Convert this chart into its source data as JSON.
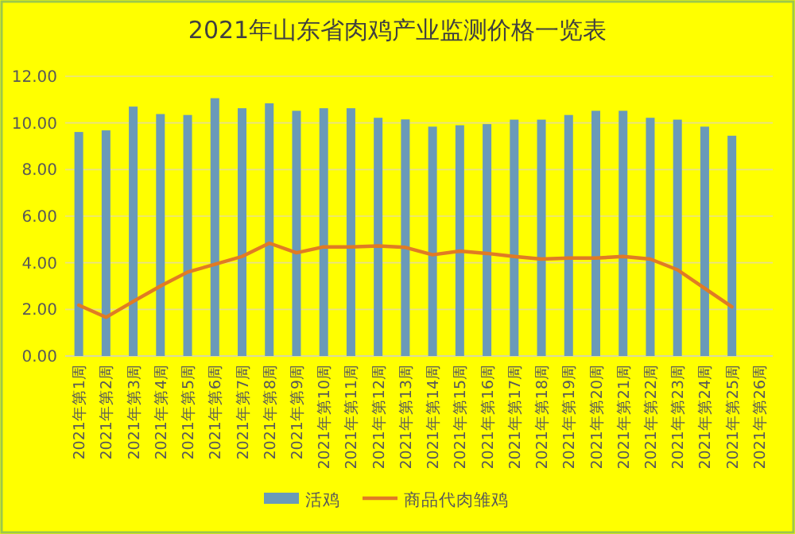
{
  "chart_data": {
    "type": "bar",
    "title": "2021年山东省肉鸡产业监测价格一览表",
    "categories": [
      "2021年第1周",
      "2021年第2周",
      "2021年第3周",
      "2021年第4周",
      "2021年第5周",
      "2021年第6周",
      "2021年第7周",
      "2021年第8周",
      "2021年第9周",
      "2021年第10周",
      "2021年第11周",
      "2021年第12周",
      "2021年第13周",
      "2021年第14周",
      "2021年第15周",
      "2021年第16周",
      "2021年第17周",
      "2021年第18周",
      "2021年第19周",
      "2021年第20周",
      "2021年第21周",
      "2021年第22周",
      "2021年第23周",
      "2021年第24周",
      "2021年第25周",
      "2021年第26周"
    ],
    "series": [
      {
        "name": "活鸡",
        "color": "#6a9ab8",
        "values": [
          9.61,
          9.68,
          10.7,
          10.38,
          10.34,
          11.06,
          10.63,
          10.84,
          10.52,
          10.63,
          10.63,
          10.22,
          10.15,
          9.84,
          9.9,
          9.95,
          10.14,
          10.14,
          10.34,
          10.52,
          10.52,
          10.22,
          10.14,
          9.84,
          9.45,
          null
        ]
      },
      {
        "name": "商品代肉雏鸡",
        "type": "line",
        "color": "#e07b24",
        "values": [
          2.18,
          1.66,
          2.34,
          3.0,
          3.6,
          3.93,
          4.27,
          4.84,
          4.43,
          4.68,
          4.68,
          4.72,
          4.66,
          4.34,
          4.5,
          4.4,
          4.27,
          4.16,
          4.2,
          4.2,
          4.27,
          4.16,
          3.7,
          2.9,
          2.11,
          null
        ]
      }
    ],
    "ylim": [
      0,
      12
    ],
    "yticks": [
      {
        "value": 0,
        "label": "0.00"
      },
      {
        "value": 2,
        "label": "2.00"
      },
      {
        "value": 4,
        "label": "4.00"
      },
      {
        "value": 6,
        "label": "6.00"
      },
      {
        "value": 8,
        "label": "8.00"
      },
      {
        "value": 10,
        "label": "10.00"
      },
      {
        "value": 12,
        "label": "12.00"
      }
    ],
    "grid": "y",
    "legend": "bottom"
  }
}
